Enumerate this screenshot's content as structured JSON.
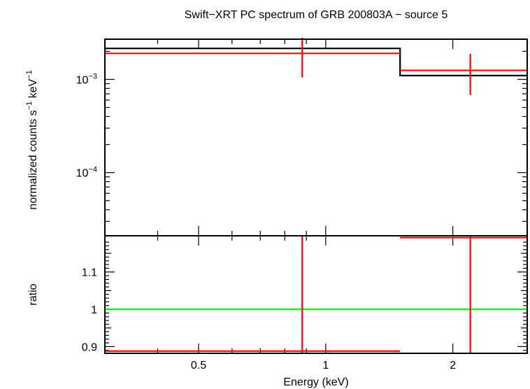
{
  "colors": {
    "model": "#000000",
    "data": "#ff0000",
    "unity": "#00ff00",
    "axes": "#000000"
  },
  "chart_data": [
    {
      "type": "line",
      "title": "Swift−XRT PC spectrum of GRB 200803A − source 5",
      "ylabel_parts": [
        "normalized counts s",
        "−1",
        " keV",
        "−1"
      ],
      "xscale": "log",
      "yscale": "log",
      "xlim": [
        0.3,
        3.0
      ],
      "ylim": [
        2.1e-05,
        0.0027
      ],
      "y_ticks": [
        {
          "value": 0.001,
          "base": "10",
          "exp": "−3"
        },
        {
          "value": 0.0001,
          "base": "10",
          "exp": "−4"
        }
      ],
      "series": [
        {
          "role": "model",
          "x": [
            0.3,
            1.5,
            1.5,
            3.0
          ],
          "y": [
            0.00215,
            0.00215,
            0.0011,
            0.0011
          ]
        },
        {
          "role": "data",
          "points": [
            {
              "x": 0.88,
              "xlow": 0.3,
              "xhigh": 1.5,
              "y": 0.0019,
              "ylow": 0.00105,
              "yhigh": 0.0028
            },
            {
              "x": 2.2,
              "xlow": 1.5,
              "xhigh": 3.0,
              "y": 0.00125,
              "ylow": 0.00068,
              "yhigh": 0.00188
            }
          ]
        }
      ]
    },
    {
      "type": "scatter",
      "xlabel": "Energy (keV)",
      "ylabel": "ratio",
      "xscale": "log",
      "xlim": [
        0.3,
        3.0
      ],
      "ylim": [
        0.882,
        1.197
      ],
      "x_ticks": [
        {
          "value": 0.5,
          "label": "0.5"
        },
        {
          "value": 1,
          "label": "1"
        },
        {
          "value": 2,
          "label": "2"
        }
      ],
      "y_ticks": [
        {
          "value": 0.9,
          "label": "0.9"
        },
        {
          "value": 1,
          "label": "1"
        },
        {
          "value": 1.1,
          "label": "1.1"
        }
      ],
      "reference_line": 1,
      "points": [
        {
          "x": 0.88,
          "xlow": 0.3,
          "xhigh": 1.5,
          "y": 0.888,
          "ylow": 0.882,
          "yhigh": 1.197
        },
        {
          "x": 2.2,
          "xlow": 1.5,
          "xhigh": 3.0,
          "y": 1.192,
          "ylow": 0.882,
          "yhigh": 1.197
        }
      ]
    }
  ]
}
